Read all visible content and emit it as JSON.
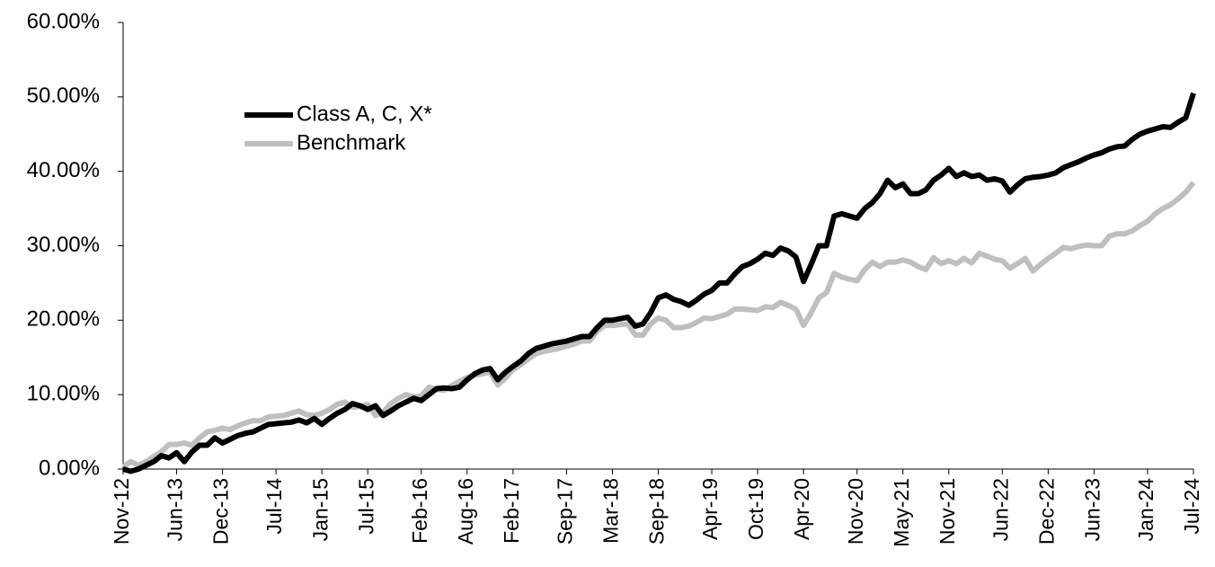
{
  "chart_data": {
    "type": "line",
    "categories": [
      "Nov-12",
      null,
      null,
      null,
      null,
      null,
      null,
      "Jun-13",
      null,
      null,
      null,
      null,
      null,
      "Dec-13",
      null,
      null,
      null,
      null,
      null,
      null,
      "Jul-14",
      null,
      null,
      null,
      null,
      null,
      "Jan-15",
      null,
      null,
      null,
      null,
      null,
      "Jul-15",
      null,
      null,
      null,
      null,
      null,
      null,
      "Feb-16",
      null,
      null,
      null,
      null,
      null,
      "Aug-16",
      null,
      null,
      null,
      null,
      null,
      "Feb-17",
      null,
      null,
      null,
      null,
      null,
      null,
      "Sep-17",
      null,
      null,
      null,
      null,
      null,
      "Mar-18",
      null,
      null,
      null,
      null,
      null,
      "Sep-18",
      null,
      null,
      null,
      null,
      null,
      null,
      "Apr-19",
      null,
      null,
      null,
      null,
      null,
      "Oct-19",
      null,
      null,
      null,
      null,
      null,
      "Apr-20",
      null,
      null,
      null,
      null,
      null,
      null,
      "Nov-20",
      null,
      null,
      null,
      null,
      null,
      "May-21",
      null,
      null,
      null,
      null,
      null,
      "Nov-21",
      null,
      null,
      null,
      null,
      null,
      null,
      "Jun-22",
      null,
      null,
      null,
      null,
      null,
      "Dec-22",
      null,
      null,
      null,
      null,
      null,
      "Jun-23",
      null,
      null,
      null,
      null,
      null,
      null,
      "Jan-24",
      null,
      null,
      null,
      null,
      null,
      "Jul-24"
    ],
    "series": [
      {
        "name": "Class A, C, X*",
        "color": "#000000",
        "values": [
          0,
          -0.3,
          0,
          0.5,
          1.0,
          1.8,
          1.5,
          2.2,
          1.0,
          2.3,
          3.2,
          3.2,
          4.2,
          3.5,
          4.0,
          4.5,
          4.8,
          5.0,
          5.5,
          6.0,
          6.1,
          6.2,
          6.3,
          6.6,
          6.2,
          6.8,
          6.0,
          6.8,
          7.5,
          8.0,
          8.8,
          8.5,
          8.0,
          8.5,
          7.2,
          7.8,
          8.5,
          9.0,
          9.5,
          9.2,
          10.0,
          10.8,
          10.9,
          10.8,
          11.0,
          12.0,
          12.8,
          13.3,
          13.5,
          12.0,
          13.0,
          13.8,
          14.5,
          15.5,
          16.2,
          16.5,
          16.8,
          17.0,
          17.2,
          17.5,
          17.8,
          17.8,
          19.0,
          20.0,
          20.0,
          20.2,
          20.4,
          19.2,
          19.5,
          21.0,
          23.0,
          23.4,
          22.8,
          22.5,
          22.0,
          22.7,
          23.5,
          24.0,
          25.0,
          25.0,
          26.2,
          27.2,
          27.6,
          28.2,
          29.0,
          28.7,
          29.7,
          29.3,
          28.5,
          25.2,
          27.5,
          30.0,
          30.0,
          34.0,
          34.3,
          34.0,
          33.7,
          35.0,
          35.8,
          37.0,
          38.8,
          37.8,
          38.3,
          37.0,
          37.0,
          37.5,
          38.8,
          39.5,
          40.4,
          39.3,
          39.8,
          39.3,
          39.5,
          38.8,
          39.0,
          38.7,
          37.2,
          38.2,
          39.0,
          39.2,
          39.3,
          39.5,
          39.8,
          40.5,
          40.9,
          41.3,
          41.8,
          42.2,
          42.5,
          43.0,
          43.3,
          43.4,
          44.3,
          45.0,
          45.4,
          45.7,
          46.0,
          45.9,
          46.6,
          47.2,
          50.5
        ]
      },
      {
        "name": "Benchmark",
        "color": "#bfbfbf",
        "values": [
          0.3,
          1.0,
          0.5,
          1.0,
          1.7,
          2.3,
          3.3,
          3.3,
          3.5,
          3.2,
          4.2,
          5.0,
          5.2,
          5.5,
          5.3,
          5.8,
          6.2,
          6.5,
          6.5,
          7.0,
          7.1,
          7.2,
          7.5,
          7.8,
          7.3,
          7.2,
          7.5,
          8.0,
          8.7,
          9.0,
          8.3,
          8.4,
          8.7,
          7.2,
          7.6,
          8.8,
          9.5,
          10.0,
          9.7,
          9.8,
          11.0,
          10.7,
          10.6,
          11.2,
          11.8,
          12.3,
          12.6,
          12.8,
          13.0,
          11.3,
          12.2,
          13.4,
          14.0,
          14.8,
          15.5,
          15.8,
          16.0,
          16.2,
          16.5,
          16.8,
          17.2,
          17.2,
          18.5,
          19.3,
          19.3,
          19.4,
          19.5,
          18.0,
          18.0,
          19.5,
          20.3,
          20.0,
          19.0,
          19.0,
          19.2,
          19.7,
          20.3,
          20.2,
          20.5,
          20.8,
          21.5,
          21.5,
          21.4,
          21.3,
          21.8,
          21.7,
          22.4,
          22.0,
          21.5,
          19.3,
          21.0,
          23.0,
          23.7,
          26.3,
          25.8,
          25.5,
          25.3,
          26.8,
          27.8,
          27.2,
          27.8,
          27.8,
          28.1,
          27.8,
          27.2,
          26.8,
          28.4,
          27.6,
          28.0,
          27.6,
          28.3,
          27.7,
          29.0,
          28.6,
          28.2,
          28.0,
          27.0,
          27.6,
          28.3,
          26.6,
          27.5,
          28.3,
          29.0,
          29.8,
          29.6,
          29.9,
          30.1,
          30.0,
          30.0,
          31.3,
          31.6,
          31.6,
          32.0,
          32.7,
          33.3,
          34.3,
          35.0,
          35.5,
          36.3,
          37.2,
          38.5
        ]
      }
    ],
    "ylim": [
      0,
      60
    ],
    "yticks": [
      {
        "value": 0,
        "label": "0.00%"
      },
      {
        "value": 10,
        "label": "10.00%"
      },
      {
        "value": 20,
        "label": "20.00%"
      },
      {
        "value": 30,
        "label": "30.00%"
      },
      {
        "value": 40,
        "label": "40.00%"
      },
      {
        "value": 50,
        "label": "50.00%"
      },
      {
        "value": 60,
        "label": "60.00%"
      }
    ]
  }
}
